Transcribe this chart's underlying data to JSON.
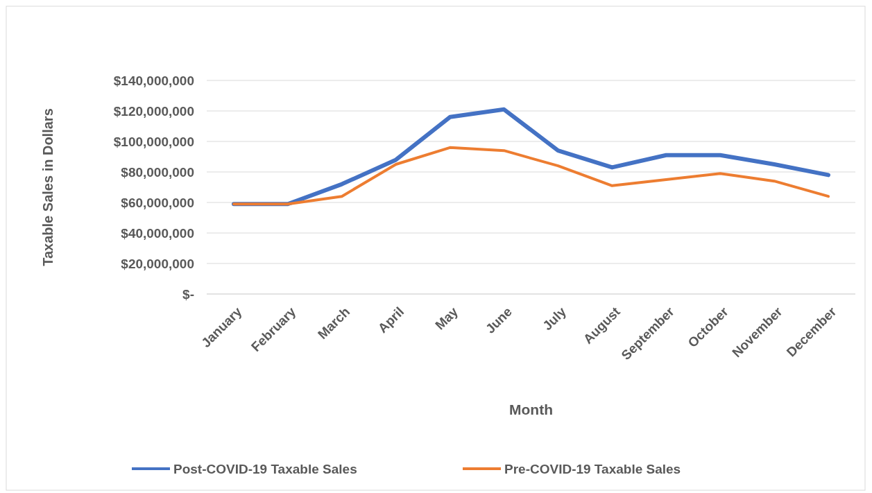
{
  "chart_data": {
    "type": "line",
    "xlabel": "Month",
    "ylabel": "Taxable Sales in Dollars",
    "categories": [
      "January",
      "February",
      "March",
      "April",
      "May",
      "June",
      "July",
      "August",
      "September",
      "October",
      "November",
      "December"
    ],
    "series": [
      {
        "name": "Post-COVID-19 Taxable Sales",
        "color": "#4472c4",
        "values": [
          59000000,
          59000000,
          72000000,
          88000000,
          116000000,
          121000000,
          94000000,
          83000000,
          91000000,
          91000000,
          85000000,
          78000000
        ]
      },
      {
        "name": "Pre-COVID-19 Taxable Sales",
        "color": "#ed7d31",
        "values": [
          59000000,
          59000000,
          64000000,
          85000000,
          96000000,
          94000000,
          84000000,
          71000000,
          75000000,
          79000000,
          74000000,
          64000000
        ]
      }
    ],
    "ylim": [
      0,
      140000000
    ],
    "yticks": [
      {
        "value": 0,
        "label": "$-"
      },
      {
        "value": 20000000,
        "label": "$20,000,000"
      },
      {
        "value": 40000000,
        "label": "$40,000,000"
      },
      {
        "value": 60000000,
        "label": "$60,000,000"
      },
      {
        "value": 80000000,
        "label": "$80,000,000"
      },
      {
        "value": 100000000,
        "label": "$100,000,000"
      },
      {
        "value": 120000000,
        "label": "$120,000,000"
      },
      {
        "value": 140000000,
        "label": "$140,000,000"
      }
    ],
    "grid": "y",
    "legend": "bottom",
    "marker": "none",
    "line_style": "solid"
  }
}
